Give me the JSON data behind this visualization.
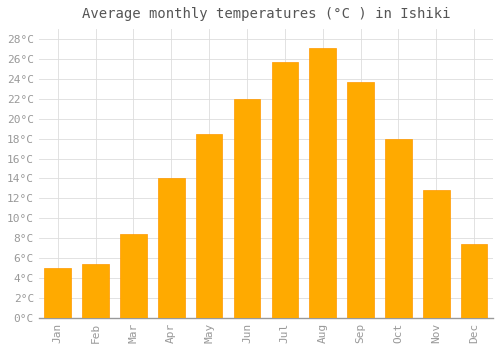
{
  "title": "Average monthly temperatures (°C ) in Ishiki",
  "months": [
    "Jan",
    "Feb",
    "Mar",
    "Apr",
    "May",
    "Jun",
    "Jul",
    "Aug",
    "Sep",
    "Oct",
    "Nov",
    "Dec"
  ],
  "values": [
    5.0,
    5.4,
    8.4,
    14.0,
    18.5,
    22.0,
    25.7,
    27.1,
    23.7,
    18.0,
    12.8,
    7.4
  ],
  "bar_color_main": "#FFAA00",
  "bar_color_edge": "#FF9900",
  "background_color": "#ffffff",
  "grid_color": "#dddddd",
  "ylim": [
    0,
    29
  ],
  "yticks": [
    0,
    2,
    4,
    6,
    8,
    10,
    12,
    14,
    16,
    18,
    20,
    22,
    24,
    26,
    28
  ],
  "title_fontsize": 10,
  "tick_fontsize": 8,
  "tick_color": "#999999",
  "title_color": "#555555"
}
